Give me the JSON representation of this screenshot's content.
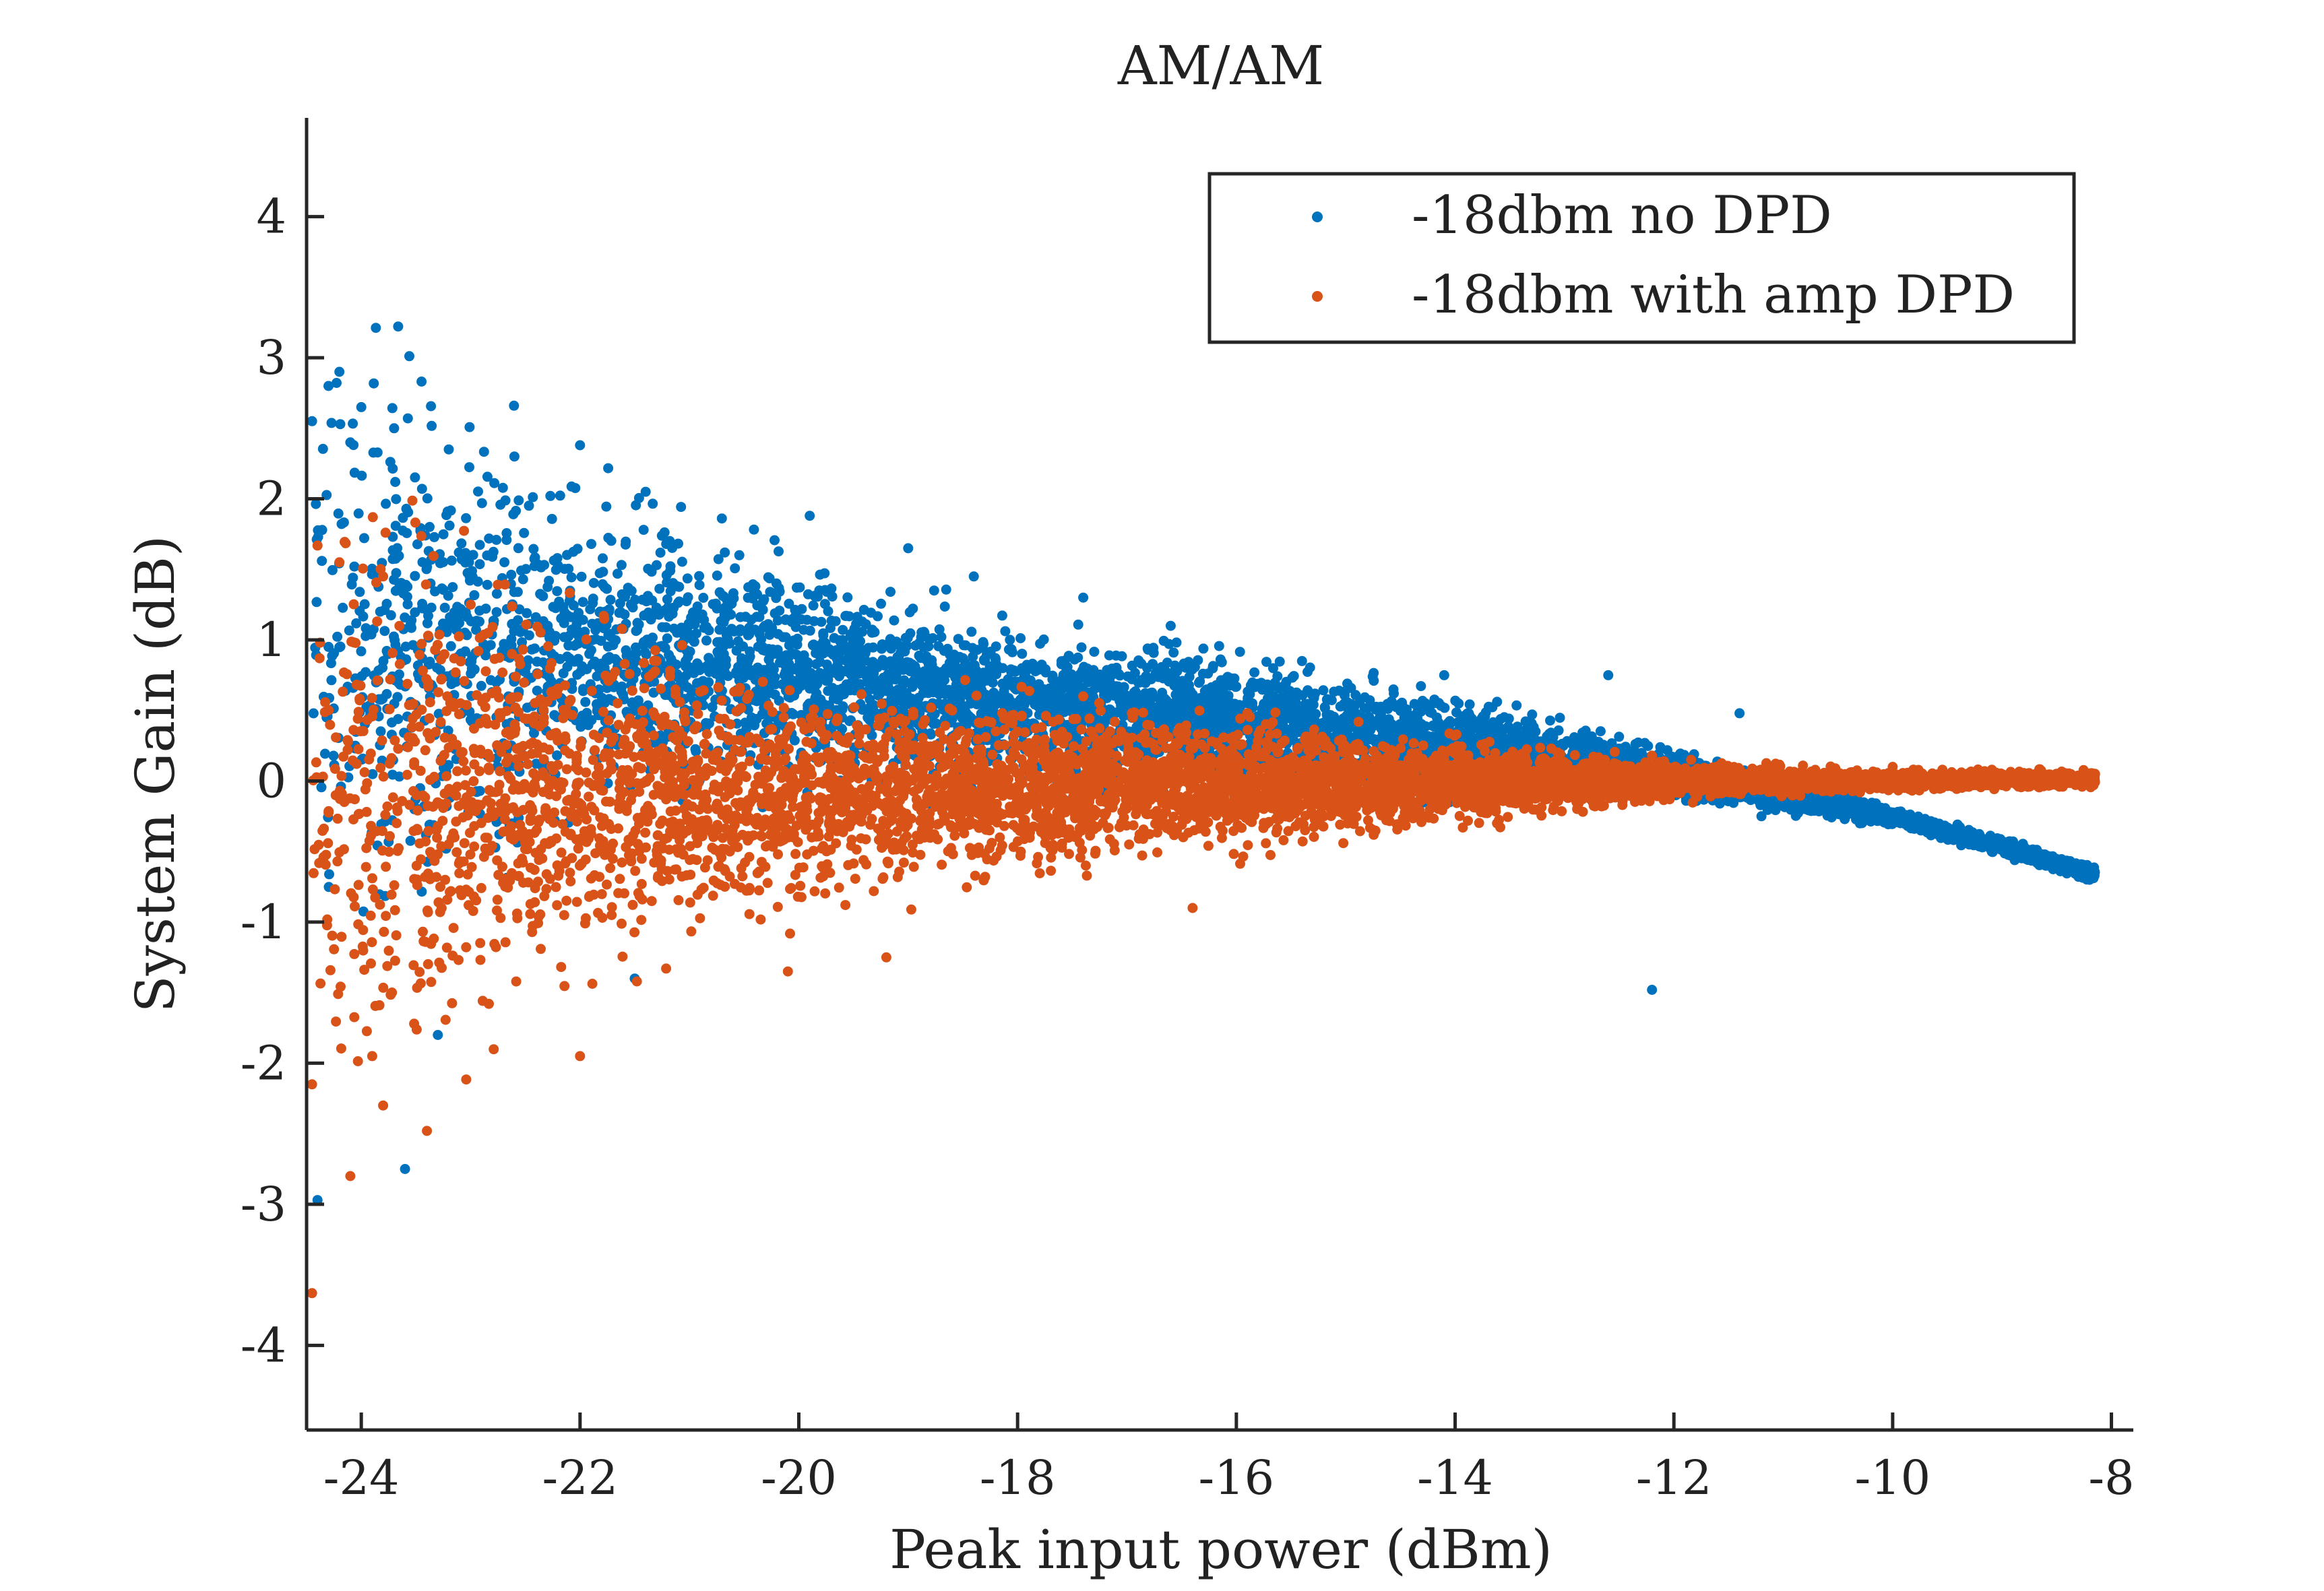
{
  "chart_data": {
    "type": "scatter",
    "title": "AM/AM",
    "xlabel": "Peak input power (dBm)",
    "ylabel": "System Gain (dB)",
    "xlim": [
      -24.5,
      -7.8
    ],
    "ylim": [
      -4.6,
      4.7
    ],
    "xticks": [
      -24,
      -22,
      -20,
      -18,
      -16,
      -14,
      -12,
      -10,
      -8
    ],
    "yticks": [
      -4,
      -3,
      -2,
      -1,
      0,
      1,
      2,
      3,
      4
    ],
    "grid": false,
    "legend_position": "top-right",
    "series": [
      {
        "name": "-18dbm no DPD",
        "color": "#0072bd",
        "points": [
          [
            -24.45,
            2.55
          ],
          [
            -24.3,
            2.8
          ],
          [
            -24.2,
            2.9
          ],
          [
            -24.0,
            2.65
          ],
          [
            -24.1,
            2.4
          ],
          [
            -23.7,
            2.5
          ],
          [
            -23.2,
            2.35
          ],
          [
            -22.6,
            2.3
          ],
          [
            -22.0,
            2.38
          ],
          [
            -21.4,
            2.05
          ],
          [
            -19.9,
            1.88
          ],
          [
            -19.0,
            1.65
          ],
          [
            -18.4,
            1.45
          ],
          [
            -17.4,
            1.3
          ],
          [
            -16.6,
            1.1
          ],
          [
            -15.4,
            0.85
          ],
          [
            -14.1,
            0.75
          ],
          [
            -12.6,
            0.75
          ],
          [
            -11.4,
            0.48
          ],
          [
            -12.2,
            -1.48
          ],
          [
            -23.6,
            -2.75
          ],
          [
            -24.4,
            -2.97
          ],
          [
            -23.3,
            -1.8
          ],
          [
            -21.5,
            -1.4
          ],
          [
            -10.3,
            -0.3
          ],
          [
            -9.3,
            -0.45
          ],
          [
            -8.2,
            -0.7
          ],
          [
            -8.6,
            -0.6
          ],
          [
            -11.2,
            -0.25
          ],
          [
            -11.6,
            -0.12
          ]
        ],
        "summary": {
          "mean_trend": [
            [
              -24,
              1.0
            ],
            [
              -22,
              0.9
            ],
            [
              -20,
              0.75
            ],
            [
              -18,
              0.55
            ],
            [
              -16,
              0.4
            ],
            [
              -14,
              0.25
            ],
            [
              -12,
              0.05
            ],
            [
              -10,
              -0.25
            ],
            [
              -8.2,
              -0.65
            ]
          ],
          "spread_halfwidth": [
            [
              -24,
              1.5
            ],
            [
              -22,
              0.9
            ],
            [
              -20,
              0.6
            ],
            [
              -18,
              0.45
            ],
            [
              -16,
              0.35
            ],
            [
              -14,
              0.25
            ],
            [
              -12,
              0.12
            ],
            [
              -10,
              0.05
            ],
            [
              -8.2,
              0.04
            ]
          ]
        }
      },
      {
        "name": "-18dbm with amp DPD",
        "color": "#d95319",
        "points": [
          [
            -24.45,
            -3.63
          ],
          [
            -24.1,
            -2.8
          ],
          [
            -23.8,
            -2.3
          ],
          [
            -23.4,
            -2.48
          ],
          [
            -24.45,
            -2.15
          ],
          [
            -23.9,
            -1.95
          ],
          [
            -22.0,
            -1.95
          ],
          [
            -20.1,
            -1.35
          ],
          [
            -19.2,
            -1.25
          ],
          [
            -16.4,
            -0.9
          ],
          [
            -24.2,
            1.55
          ],
          [
            -23.8,
            1.45
          ],
          [
            -23.0,
            1.25
          ],
          [
            -21.3,
            0.85
          ],
          [
            -17.4,
            0.6
          ],
          [
            -12.2,
            0.18
          ],
          [
            -10.0,
            0.1
          ],
          [
            -8.15,
            0.05
          ],
          [
            -8.6,
            0.02
          ],
          [
            -9.5,
            -0.02
          ]
        ],
        "summary": {
          "mean_trend": [
            [
              -24,
              -0.2
            ],
            [
              -22,
              -0.15
            ],
            [
              -20,
              -0.1
            ],
            [
              -18,
              -0.05
            ],
            [
              -16,
              -0.03
            ],
            [
              -14,
              -0.02
            ],
            [
              -12,
              0.0
            ],
            [
              -10,
              0.0
            ],
            [
              -8.2,
              0.02
            ]
          ],
          "spread_halfwidth": [
            [
              -24,
              1.5
            ],
            [
              -22,
              0.9
            ],
            [
              -20,
              0.6
            ],
            [
              -18,
              0.45
            ],
            [
              -16,
              0.35
            ],
            [
              -14,
              0.22
            ],
            [
              -12,
              0.1
            ],
            [
              -10,
              0.05
            ],
            [
              -8.2,
              0.04
            ]
          ]
        }
      }
    ]
  }
}
